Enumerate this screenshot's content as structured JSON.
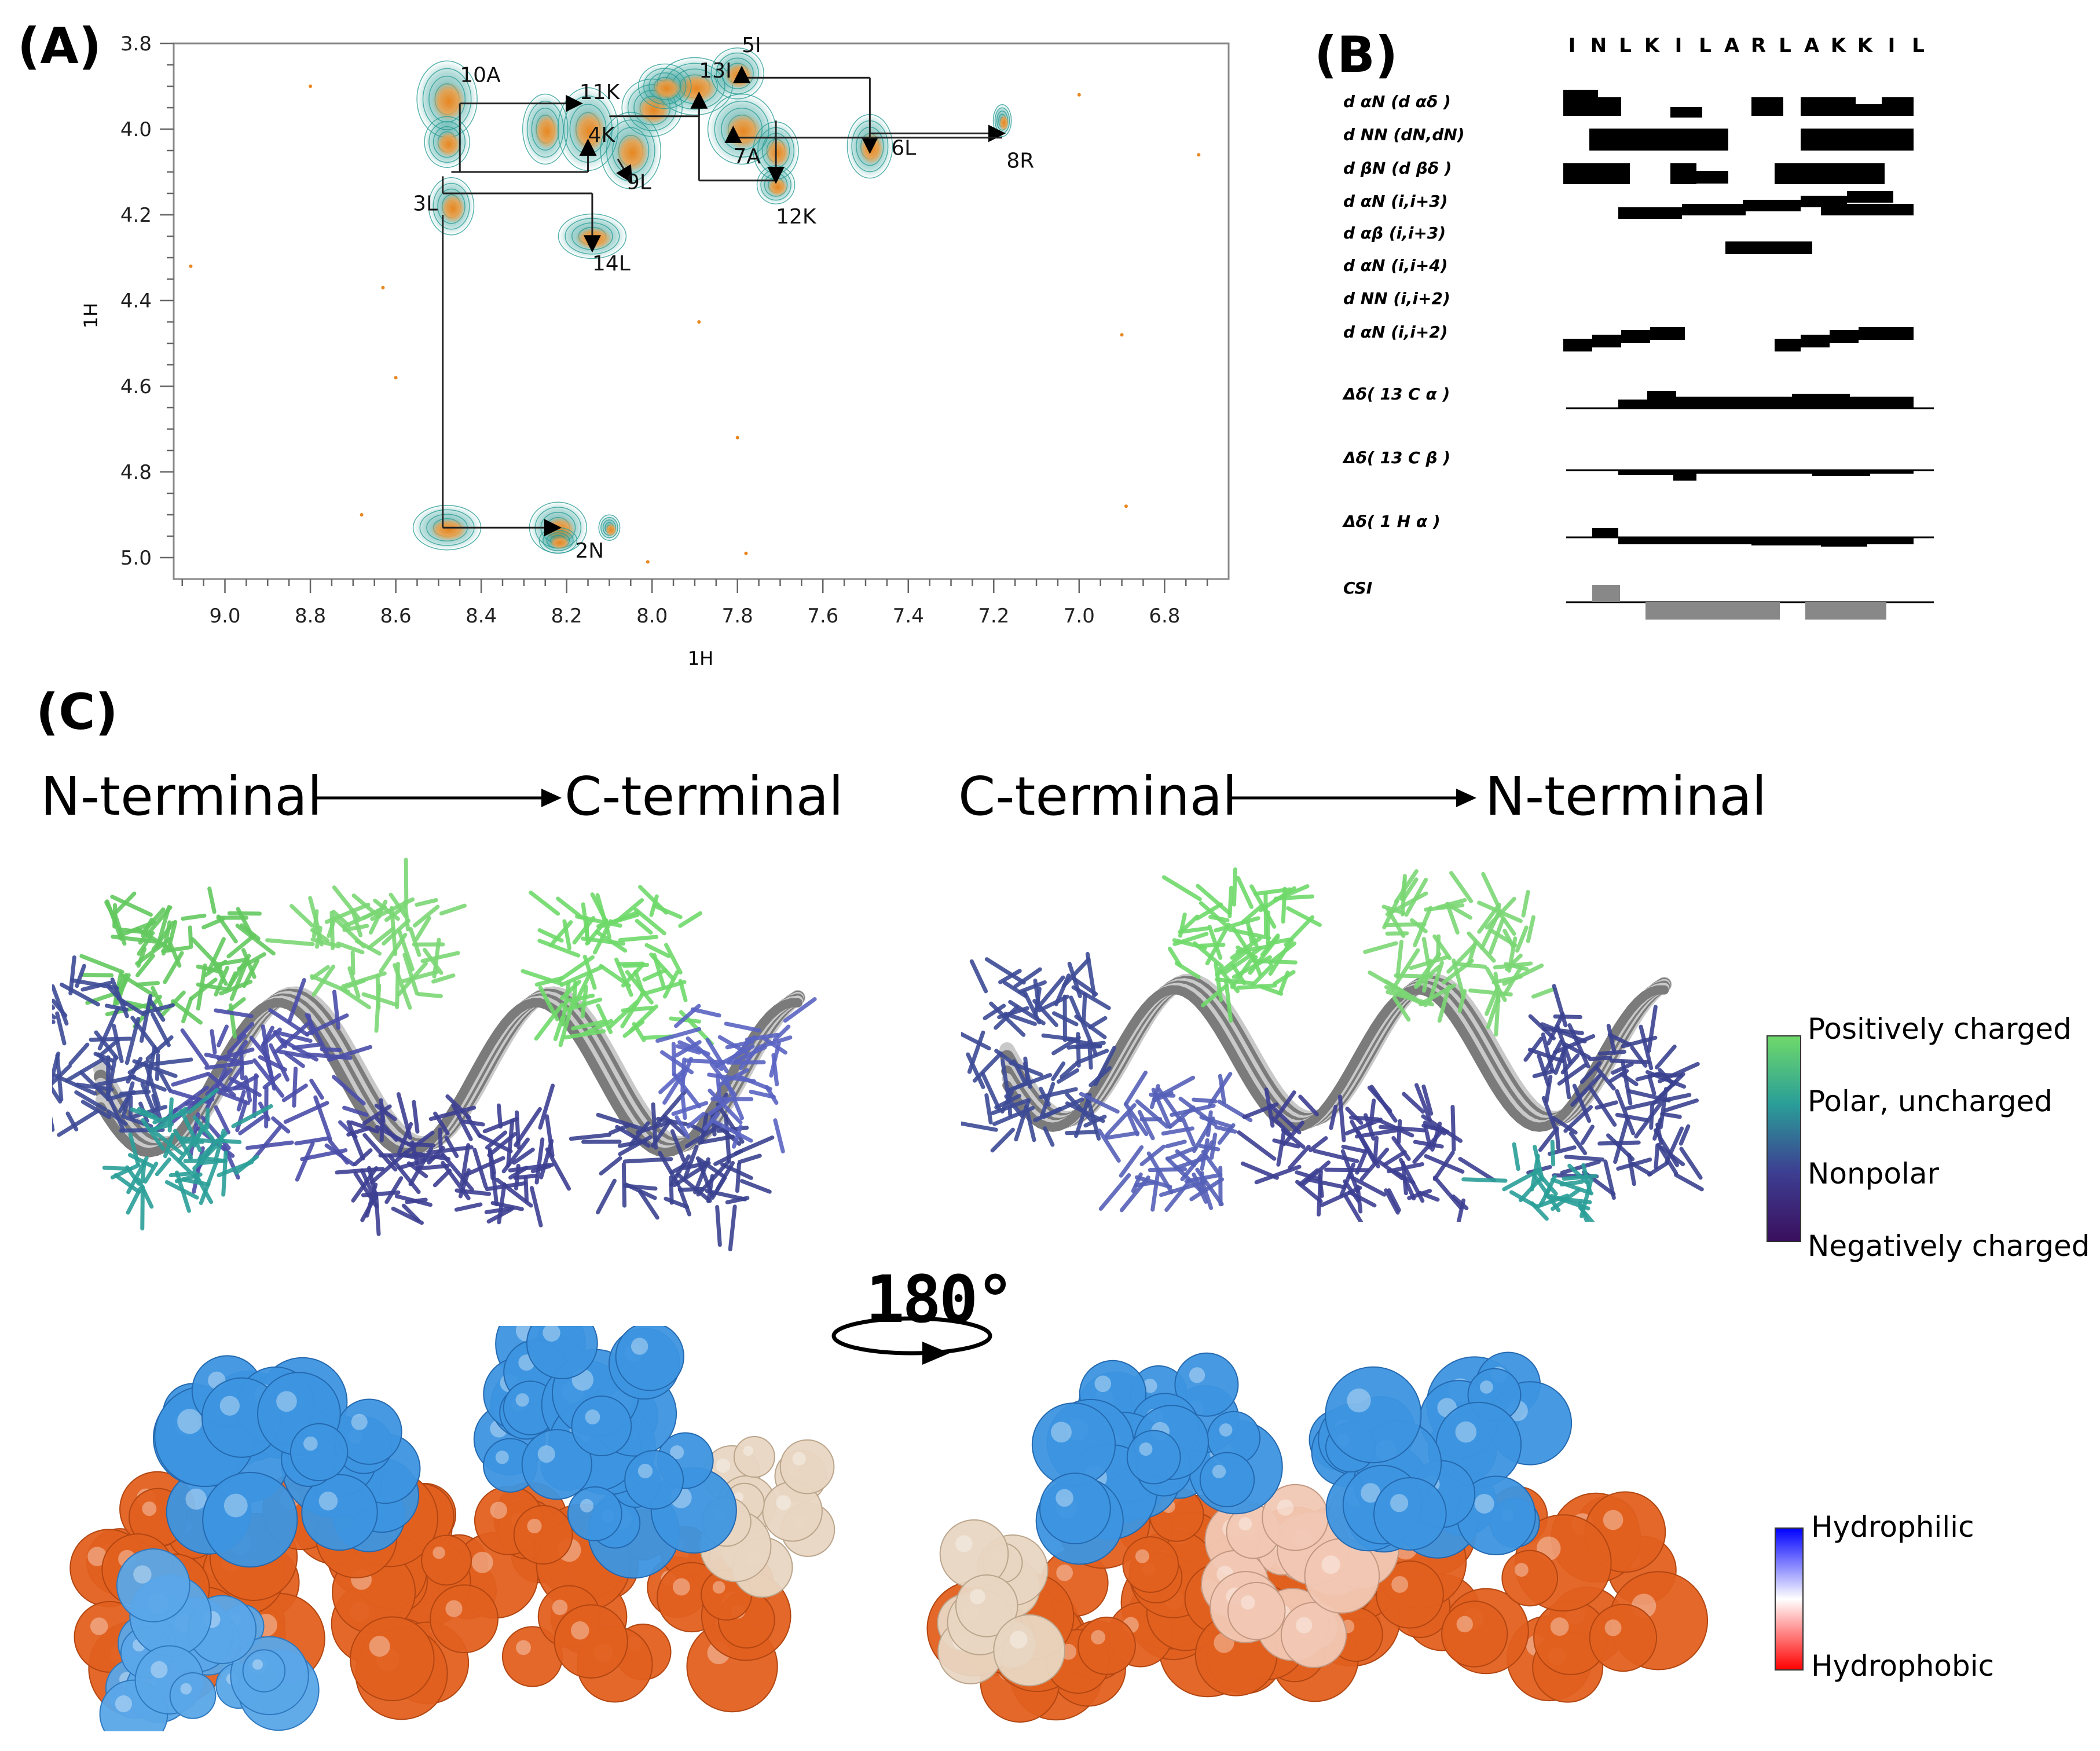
{
  "panels": {
    "a": "(A)",
    "b": "(B)",
    "c": "(C)"
  },
  "noesy": {
    "xlabel": "1H",
    "ylabel": "1H",
    "x_ticks": [
      "9.0",
      "8.8",
      "8.6",
      "8.4",
      "8.2",
      "8.0",
      "7.8",
      "7.6",
      "7.4",
      "7.2",
      "7.0",
      "6.8"
    ],
    "y_ticks": [
      "3.8",
      "4.0",
      "4.2",
      "4.4",
      "4.6",
      "4.8",
      "5.0"
    ],
    "xlim": [
      9.12,
      6.65
    ],
    "ylim": [
      3.8,
      5.05
    ],
    "peak_labels": [
      {
        "text": "10A",
        "x": 8.45,
        "y": 3.89
      },
      {
        "text": "11K",
        "x": 8.17,
        "y": 3.93
      },
      {
        "text": "13I",
        "x": 7.89,
        "y": 3.88
      },
      {
        "text": "5I",
        "x": 7.79,
        "y": 3.82
      },
      {
        "text": "4K",
        "x": 8.15,
        "y": 4.03
      },
      {
        "text": "9L",
        "x": 8.06,
        "y": 4.14
      },
      {
        "text": "7A",
        "x": 7.81,
        "y": 4.08
      },
      {
        "text": "6L",
        "x": 7.44,
        "y": 4.06
      },
      {
        "text": "8R",
        "x": 7.17,
        "y": 4.09
      },
      {
        "text": "3L",
        "x": 8.56,
        "y": 4.19
      },
      {
        "text": "12K",
        "x": 7.71,
        "y": 4.22
      },
      {
        "text": "14L",
        "x": 8.14,
        "y": 4.33
      },
      {
        "text": "2N",
        "x": 8.18,
        "y": 5.0
      }
    ]
  },
  "noe_summary": {
    "sequence": [
      "I",
      "N",
      "L",
      "K",
      "I",
      "L",
      "A",
      "R",
      "L",
      "A",
      "K",
      "K",
      "I",
      "L"
    ],
    "rows": [
      {
        "label": "d αN (d αδ )"
      },
      {
        "label": "d NN (dN,dN)"
      },
      {
        "label": "d βN (d βδ )"
      },
      {
        "label": "d αN (i,i+3)"
      },
      {
        "label": "d αβ (i,i+3)"
      },
      {
        "label": "d αN (i,i+4)"
      },
      {
        "label": "d NN (i,i+2)"
      },
      {
        "label": "d αN (i,i+2)"
      },
      {
        "label": "Δδ( 13 C α )"
      },
      {
        "label": "Δδ( 13 C β )"
      },
      {
        "label": "Δδ( 1 H α )"
      },
      {
        "label": "CSI"
      }
    ]
  },
  "structures": {
    "left_from": "N-terminal",
    "left_to": "C-terminal",
    "right_from": "C-terminal",
    "right_to": "N-terminal",
    "rotation": "180°"
  },
  "legend_charge": {
    "items": [
      "Positively charged",
      "Polar, uncharged",
      "Nonpolar",
      "Negatively charged"
    ],
    "colors": [
      "#6fd96a",
      "#2a9e98",
      "#3d3f92",
      "#3a0f5e"
    ]
  },
  "legend_hydro": {
    "items": [
      "Hydrophilic",
      "Hydrophobic"
    ],
    "colors": [
      "#0000ff",
      "#ff0000"
    ]
  }
}
